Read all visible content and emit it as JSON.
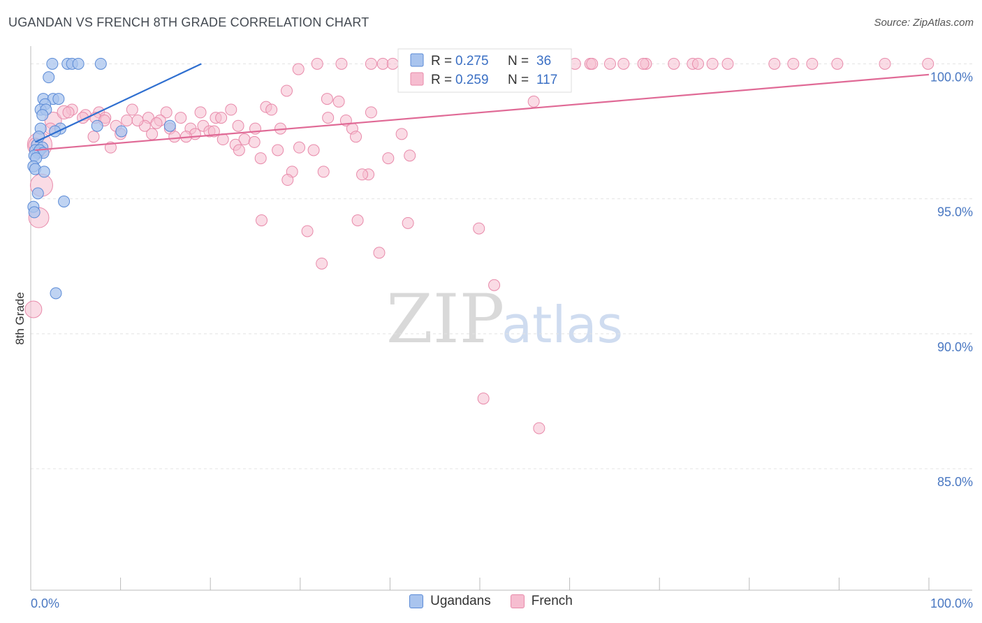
{
  "header": {
    "title": "UGANDAN VS FRENCH 8TH GRADE CORRELATION CHART",
    "source": "Source: ZipAtlas.com"
  },
  "watermark": {
    "zip": "ZIP",
    "atlas": "atlas"
  },
  "colors": {
    "blue_fill": "#a9c4ee",
    "blue_stroke": "#5a8ad6",
    "blue_line": "#2f6fd0",
    "pink_fill": "#f6bdd0",
    "pink_stroke": "#e88aaa",
    "pink_line": "#e06a96",
    "grid": "#e3e3e3",
    "axis_text": "#4a78c2"
  },
  "legend": {
    "r_label": "R =",
    "n_label": "N =",
    "rows": [
      {
        "series": "Ugandans",
        "r": "0.275",
        "n": "36"
      },
      {
        "series": "French",
        "r": "0.259",
        "n": "117"
      }
    ]
  },
  "chart_data": {
    "type": "scatter",
    "xlabel": "",
    "ylabel": "8th Grade",
    "xlim": [
      0,
      100
    ],
    "ylim": [
      80.5,
      100.5
    ],
    "x_tick_labels": [
      "0.0%",
      "100.0%"
    ],
    "y_ticks": [
      85,
      90,
      95,
      100
    ],
    "y_tick_labels": [
      "85.0%",
      "90.0%",
      "95.0%",
      "100.0%"
    ],
    "grid": true,
    "legend_position": "top-center",
    "series": [
      {
        "name": "Ugandans",
        "trend": {
          "x": [
            0.5,
            19.0
          ],
          "y": [
            97.1,
            100.0
          ]
        },
        "points": [
          {
            "x": 2.4,
            "y": 100.0,
            "s": 1
          },
          {
            "x": 4.1,
            "y": 100.0,
            "s": 1
          },
          {
            "x": 4.6,
            "y": 100.0,
            "s": 1
          },
          {
            "x": 5.3,
            "y": 100.0,
            "s": 1
          },
          {
            "x": 7.8,
            "y": 100.0,
            "s": 1
          },
          {
            "x": 2.0,
            "y": 99.5,
            "s": 1
          },
          {
            "x": 1.4,
            "y": 98.7,
            "s": 1
          },
          {
            "x": 2.5,
            "y": 98.7,
            "s": 1
          },
          {
            "x": 3.1,
            "y": 98.7,
            "s": 1
          },
          {
            "x": 1.6,
            "y": 98.5,
            "s": 1
          },
          {
            "x": 1.1,
            "y": 98.3,
            "s": 1
          },
          {
            "x": 1.7,
            "y": 98.3,
            "s": 1
          },
          {
            "x": 1.3,
            "y": 98.1,
            "s": 1
          },
          {
            "x": 7.4,
            "y": 97.7,
            "s": 1
          },
          {
            "x": 1.1,
            "y": 97.6,
            "s": 1
          },
          {
            "x": 3.3,
            "y": 97.6,
            "s": 1
          },
          {
            "x": 2.7,
            "y": 97.5,
            "s": 1
          },
          {
            "x": 10.1,
            "y": 97.5,
            "s": 1
          },
          {
            "x": 15.5,
            "y": 97.7,
            "s": 1
          },
          {
            "x": 0.7,
            "y": 97.0,
            "s": 1
          },
          {
            "x": 1.3,
            "y": 96.9,
            "s": 1
          },
          {
            "x": 0.5,
            "y": 96.8,
            "s": 1
          },
          {
            "x": 0.8,
            "y": 96.7,
            "s": 1
          },
          {
            "x": 1.0,
            "y": 96.8,
            "s": 1
          },
          {
            "x": 1.4,
            "y": 96.7,
            "s": 1
          },
          {
            "x": 0.4,
            "y": 96.6,
            "s": 1
          },
          {
            "x": 0.6,
            "y": 96.5,
            "s": 1
          },
          {
            "x": 0.3,
            "y": 96.2,
            "s": 1
          },
          {
            "x": 0.5,
            "y": 96.1,
            "s": 1
          },
          {
            "x": 1.5,
            "y": 96.0,
            "s": 1
          },
          {
            "x": 0.8,
            "y": 95.2,
            "s": 1
          },
          {
            "x": 3.7,
            "y": 94.9,
            "s": 1
          },
          {
            "x": 0.3,
            "y": 94.7,
            "s": 1
          },
          {
            "x": 0.4,
            "y": 94.5,
            "s": 1
          },
          {
            "x": 2.8,
            "y": 91.5,
            "s": 1
          },
          {
            "x": 0.9,
            "y": 97.3,
            "s": 1
          }
        ]
      },
      {
        "name": "French",
        "trend": {
          "x": [
            0.5,
            100.0
          ],
          "y": [
            96.8,
            99.6
          ]
        },
        "points": [
          {
            "x": 31.9,
            "y": 100.0,
            "s": 1
          },
          {
            "x": 37.9,
            "y": 100.0,
            "s": 1
          },
          {
            "x": 39.2,
            "y": 100.0,
            "s": 1
          },
          {
            "x": 40.3,
            "y": 100.0,
            "s": 1
          },
          {
            "x": 42.3,
            "y": 100.0,
            "s": 1
          },
          {
            "x": 44.5,
            "y": 100.0,
            "s": 1
          },
          {
            "x": 46.1,
            "y": 100.0,
            "s": 1
          },
          {
            "x": 47.5,
            "y": 100.0,
            "s": 1
          },
          {
            "x": 49.9,
            "y": 100.0,
            "s": 1
          },
          {
            "x": 52.5,
            "y": 100.0,
            "s": 1
          },
          {
            "x": 56.0,
            "y": 100.0,
            "s": 1
          },
          {
            "x": 57.3,
            "y": 100.0,
            "s": 1
          },
          {
            "x": 58.3,
            "y": 100.0,
            "s": 1
          },
          {
            "x": 60.6,
            "y": 100.0,
            "s": 1
          },
          {
            "x": 62.3,
            "y": 100.0,
            "s": 1
          },
          {
            "x": 64.5,
            "y": 100.0,
            "s": 1
          },
          {
            "x": 66.0,
            "y": 100.0,
            "s": 1
          },
          {
            "x": 68.5,
            "y": 100.0,
            "s": 1
          },
          {
            "x": 71.6,
            "y": 100.0,
            "s": 1
          },
          {
            "x": 73.7,
            "y": 100.0,
            "s": 1
          },
          {
            "x": 75.9,
            "y": 100.0,
            "s": 1
          },
          {
            "x": 77.6,
            "y": 100.0,
            "s": 1
          },
          {
            "x": 82.8,
            "y": 100.0,
            "s": 1
          },
          {
            "x": 84.9,
            "y": 100.0,
            "s": 1
          },
          {
            "x": 87.0,
            "y": 100.0,
            "s": 1
          },
          {
            "x": 89.8,
            "y": 100.0,
            "s": 1
          },
          {
            "x": 95.1,
            "y": 100.0,
            "s": 1
          },
          {
            "x": 99.9,
            "y": 100.0,
            "s": 1
          },
          {
            "x": 34.6,
            "y": 100.0,
            "s": 1
          },
          {
            "x": 58.9,
            "y": 100.0,
            "s": 1
          },
          {
            "x": 74.3,
            "y": 100.0,
            "s": 1
          },
          {
            "x": 62.5,
            "y": 100.0,
            "s": 1
          },
          {
            "x": 68.2,
            "y": 100.0,
            "s": 1
          },
          {
            "x": 29.8,
            "y": 99.8,
            "s": 1
          },
          {
            "x": 28.5,
            "y": 99.0,
            "s": 1
          },
          {
            "x": 33.0,
            "y": 98.7,
            "s": 1
          },
          {
            "x": 34.3,
            "y": 98.6,
            "s": 1
          },
          {
            "x": 56.0,
            "y": 98.6,
            "s": 1
          },
          {
            "x": 26.2,
            "y": 98.4,
            "s": 1
          },
          {
            "x": 26.8,
            "y": 98.3,
            "s": 1
          },
          {
            "x": 22.3,
            "y": 98.3,
            "s": 1
          },
          {
            "x": 37.9,
            "y": 98.2,
            "s": 1
          },
          {
            "x": 18.9,
            "y": 98.2,
            "s": 1
          },
          {
            "x": 15.1,
            "y": 98.2,
            "s": 1
          },
          {
            "x": 11.3,
            "y": 98.3,
            "s": 1
          },
          {
            "x": 7.6,
            "y": 98.2,
            "s": 1
          },
          {
            "x": 6.1,
            "y": 98.1,
            "s": 1
          },
          {
            "x": 4.6,
            "y": 98.3,
            "s": 1
          },
          {
            "x": 5.8,
            "y": 98.0,
            "s": 1
          },
          {
            "x": 8.3,
            "y": 98.0,
            "s": 1
          },
          {
            "x": 10.7,
            "y": 97.9,
            "s": 1
          },
          {
            "x": 13.1,
            "y": 98.0,
            "s": 1
          },
          {
            "x": 14.4,
            "y": 97.9,
            "s": 1
          },
          {
            "x": 16.7,
            "y": 98.0,
            "s": 1
          },
          {
            "x": 20.6,
            "y": 98.0,
            "s": 1
          },
          {
            "x": 23.1,
            "y": 97.7,
            "s": 1
          },
          {
            "x": 9.5,
            "y": 97.7,
            "s": 1
          },
          {
            "x": 12.7,
            "y": 97.7,
            "s": 1
          },
          {
            "x": 15.5,
            "y": 97.6,
            "s": 1
          },
          {
            "x": 17.8,
            "y": 97.6,
            "s": 1
          },
          {
            "x": 19.2,
            "y": 97.7,
            "s": 1
          },
          {
            "x": 25.0,
            "y": 97.6,
            "s": 1
          },
          {
            "x": 27.8,
            "y": 97.6,
            "s": 1
          },
          {
            "x": 35.1,
            "y": 97.9,
            "s": 1
          },
          {
            "x": 35.8,
            "y": 97.6,
            "s": 1
          },
          {
            "x": 36.2,
            "y": 97.3,
            "s": 1
          },
          {
            "x": 41.3,
            "y": 97.4,
            "s": 1
          },
          {
            "x": 33.1,
            "y": 98.0,
            "s": 1
          },
          {
            "x": 7.0,
            "y": 97.3,
            "s": 1
          },
          {
            "x": 10.0,
            "y": 97.4,
            "s": 1
          },
          {
            "x": 13.5,
            "y": 97.4,
            "s": 1
          },
          {
            "x": 16.0,
            "y": 97.3,
            "s": 1
          },
          {
            "x": 18.3,
            "y": 97.4,
            "s": 1
          },
          {
            "x": 19.9,
            "y": 97.5,
            "s": 1
          },
          {
            "x": 21.4,
            "y": 97.2,
            "s": 1
          },
          {
            "x": 23.8,
            "y": 97.2,
            "s": 1
          },
          {
            "x": 24.9,
            "y": 97.1,
            "s": 1
          },
          {
            "x": 22.8,
            "y": 97.0,
            "s": 1
          },
          {
            "x": 8.9,
            "y": 96.9,
            "s": 1
          },
          {
            "x": 17.3,
            "y": 97.3,
            "s": 1
          },
          {
            "x": 20.4,
            "y": 97.5,
            "s": 1
          },
          {
            "x": 29.9,
            "y": 96.9,
            "s": 1
          },
          {
            "x": 31.5,
            "y": 96.8,
            "s": 1
          },
          {
            "x": 27.5,
            "y": 96.8,
            "s": 1
          },
          {
            "x": 23.2,
            "y": 96.8,
            "s": 1
          },
          {
            "x": 25.6,
            "y": 96.5,
            "s": 1
          },
          {
            "x": 39.8,
            "y": 96.5,
            "s": 1
          },
          {
            "x": 42.2,
            "y": 96.6,
            "s": 1
          },
          {
            "x": 29.1,
            "y": 96.0,
            "s": 1
          },
          {
            "x": 32.6,
            "y": 96.0,
            "s": 1
          },
          {
            "x": 37.6,
            "y": 95.9,
            "s": 1
          },
          {
            "x": 36.9,
            "y": 95.9,
            "s": 1
          },
          {
            "x": 28.6,
            "y": 95.7,
            "s": 1
          },
          {
            "x": 25.7,
            "y": 94.2,
            "s": 1
          },
          {
            "x": 36.4,
            "y": 94.2,
            "s": 1
          },
          {
            "x": 42.0,
            "y": 94.1,
            "s": 1
          },
          {
            "x": 30.8,
            "y": 93.8,
            "s": 1
          },
          {
            "x": 49.9,
            "y": 93.9,
            "s": 1
          },
          {
            "x": 38.8,
            "y": 93.0,
            "s": 1
          },
          {
            "x": 32.4,
            "y": 92.6,
            "s": 1
          },
          {
            "x": 51.6,
            "y": 91.8,
            "s": 1
          },
          {
            "x": 50.4,
            "y": 87.6,
            "s": 1
          },
          {
            "x": 56.6,
            "y": 86.5,
            "s": 1
          },
          {
            "x": 1.0,
            "y": 97.0,
            "s": 2.2
          },
          {
            "x": 2.5,
            "y": 97.9,
            "s": 1.5
          },
          {
            "x": 3.7,
            "y": 98.2,
            "s": 1.2
          },
          {
            "x": 1.2,
            "y": 95.5,
            "s": 2.0
          },
          {
            "x": 0.9,
            "y": 94.3,
            "s": 1.8
          },
          {
            "x": 0.3,
            "y": 90.9,
            "s": 1.5
          },
          {
            "x": 0.5,
            "y": 97.0,
            "s": 1.2
          },
          {
            "x": 2.2,
            "y": 97.6,
            "s": 1.0
          },
          {
            "x": 4.2,
            "y": 98.2,
            "s": 1.0
          },
          {
            "x": 7.2,
            "y": 98.0,
            "s": 1.0
          },
          {
            "x": 11.9,
            "y": 97.9,
            "s": 1.0
          },
          {
            "x": 14.0,
            "y": 97.8,
            "s": 1.0
          },
          {
            "x": 21.2,
            "y": 98.0,
            "s": 1.0
          },
          {
            "x": 8.2,
            "y": 97.9,
            "s": 1.0
          }
        ]
      }
    ]
  }
}
